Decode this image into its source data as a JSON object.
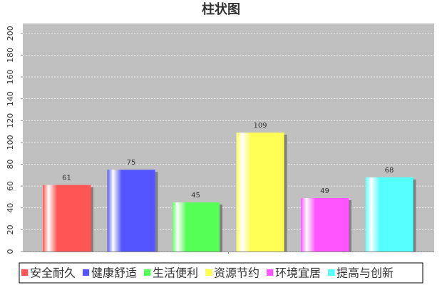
{
  "chart_data": {
    "type": "bar",
    "title": "柱状图",
    "categories": [
      null
    ],
    "series": [
      {
        "name": "安全耐久",
        "color": "#ff5555",
        "values": [
          61
        ]
      },
      {
        "name": "健康舒适",
        "color": "#5555ff",
        "values": [
          75
        ]
      },
      {
        "name": "生活便利",
        "color": "#55ff55",
        "values": [
          45
        ]
      },
      {
        "name": "资源节约",
        "color": "#ffff55",
        "values": [
          109
        ]
      },
      {
        "name": "环境宜居",
        "color": "#ff55ff",
        "values": [
          49
        ]
      },
      {
        "name": "提高与创新",
        "color": "#55ffff",
        "values": [
          68
        ]
      }
    ],
    "ylim": [
      0,
      209
    ],
    "yticks": [
      0,
      20,
      40,
      60,
      80,
      100,
      120,
      140,
      160,
      180,
      200
    ],
    "grid": true,
    "legend": "bottom"
  }
}
